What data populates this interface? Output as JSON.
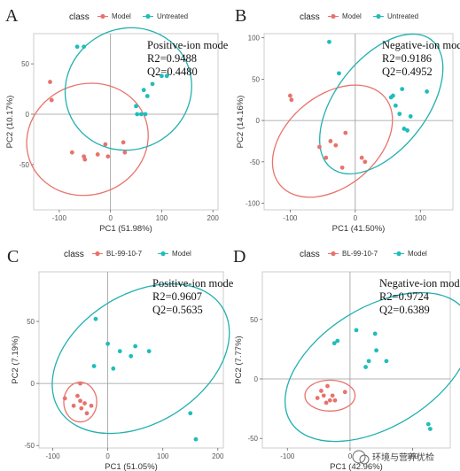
{
  "colors": {
    "red": "#E8736C",
    "teal": "#1FBDBC",
    "ellipse_red": "#E8736C",
    "ellipse_teal": "#22AFAF"
  },
  "watermark": "环境与营养优检",
  "chart_data": [
    {
      "type": "scatter",
      "panel_letter": "A",
      "legend_title": "class",
      "legend": [
        "Model",
        "Untreated"
      ],
      "annotation": [
        "Positive-ion mode",
        "R2=0.9488",
        "Q2=0.4480"
      ],
      "xlabel": "PC1 (51.98%)",
      "ylabel": "PC2 (10.17%)",
      "xlim": [
        -150,
        210
      ],
      "ylim": [
        -95,
        80
      ],
      "xticks": [
        -100,
        0,
        100,
        200
      ],
      "yticks": [
        -50,
        0,
        50
      ],
      "series": [
        {
          "name": "Model",
          "color": "red",
          "points": [
            [
              -118,
              32
            ],
            [
              -115,
              14
            ],
            [
              -75,
              -38
            ],
            [
              -52,
              -42
            ],
            [
              -50,
              -45
            ],
            [
              -25,
              -40
            ],
            [
              -10,
              -30
            ],
            [
              -5,
              -42
            ],
            [
              25,
              -28
            ],
            [
              28,
              -38
            ]
          ]
        },
        {
          "name": "Untreated",
          "color": "teal",
          "points": [
            [
              -65,
              67
            ],
            [
              -52,
              67
            ],
            [
              50,
              8
            ],
            [
              52,
              0
            ],
            [
              60,
              0
            ],
            [
              65,
              24
            ],
            [
              68,
              0
            ],
            [
              72,
              18
            ],
            [
              82,
              30
            ],
            [
              100,
              38
            ],
            [
              110,
              38
            ]
          ]
        }
      ],
      "ellipses": [
        {
          "series": "Model",
          "cx": -45,
          "cy": -25,
          "rx": 120,
          "ry": 55,
          "angle": -20
        },
        {
          "series": "Untreated",
          "cx": 35,
          "cy": 25,
          "rx": 125,
          "ry": 60,
          "angle": -28
        }
      ]
    },
    {
      "type": "scatter",
      "panel_letter": "B",
      "legend_title": "class",
      "legend": [
        "Model",
        "Untreated"
      ],
      "annotation": [
        "Negative-ion mode",
        "R2=0.9186",
        "Q2=0.4952"
      ],
      "xlabel": "PC1 (41.50%)",
      "ylabel": "PC2 (14.16%)",
      "xlim": [
        -140,
        150
      ],
      "ylim": [
        -108,
        105
      ],
      "xticks": [
        -100,
        0,
        100
      ],
      "yticks": [
        -100,
        -50,
        0,
        50,
        100
      ],
      "series": [
        {
          "name": "Model",
          "color": "red",
          "points": [
            [
              -100,
              30
            ],
            [
              -98,
              25
            ],
            [
              -55,
              -32
            ],
            [
              -45,
              -45
            ],
            [
              -38,
              -25
            ],
            [
              -30,
              -30
            ],
            [
              -20,
              -57
            ],
            [
              -15,
              -15
            ],
            [
              10,
              -45
            ],
            [
              15,
              -50
            ]
          ]
        },
        {
          "name": "Untreated",
          "color": "teal",
          "points": [
            [
              -40,
              95
            ],
            [
              -25,
              57
            ],
            [
              55,
              28
            ],
            [
              58,
              30
            ],
            [
              62,
              18
            ],
            [
              68,
              8
            ],
            [
              72,
              38
            ],
            [
              75,
              -10
            ],
            [
              80,
              -12
            ],
            [
              85,
              5
            ],
            [
              110,
              35
            ]
          ]
        }
      ],
      "ellipses": [
        {
          "series": "Model",
          "cx": -35,
          "cy": -25,
          "rx": 105,
          "ry": 55,
          "angle": -40
        },
        {
          "series": "Untreated",
          "cx": 40,
          "cy": 20,
          "rx": 125,
          "ry": 55,
          "angle": -52
        }
      ]
    },
    {
      "type": "scatter",
      "panel_letter": "C",
      "legend_title": "class",
      "legend": [
        "BL-99-10-7",
        "Model"
      ],
      "annotation": [
        "Positive-ion mode",
        "R2=0.9607",
        "Q2=0.5635"
      ],
      "xlabel": "PC1 (51.05%)",
      "ylabel": "PC2 (7.19%)",
      "xlim": [
        -125,
        210
      ],
      "ylim": [
        -52,
        90
      ],
      "xticks": [
        -100,
        0,
        100,
        200
      ],
      "yticks": [
        -50,
        0,
        50
      ],
      "series": [
        {
          "name": "BL-99-10-7",
          "color": "red",
          "points": [
            [
              -78,
              -12
            ],
            [
              -62,
              -18
            ],
            [
              -55,
              -10
            ],
            [
              -50,
              -14
            ],
            [
              -48,
              -20
            ],
            [
              -42,
              -16
            ],
            [
              -38,
              -24
            ],
            [
              -50,
              0
            ],
            [
              -30,
              -18
            ]
          ]
        },
        {
          "name": "Model",
          "color": "teal",
          "points": [
            [
              -22,
              52
            ],
            [
              -25,
              14
            ],
            [
              0,
              32
            ],
            [
              10,
              12
            ],
            [
              22,
              26
            ],
            [
              42,
              22
            ],
            [
              50,
              30
            ],
            [
              75,
              26
            ],
            [
              150,
              -24
            ],
            [
              160,
              -45
            ]
          ]
        }
      ],
      "ellipses": [
        {
          "series": "BL-99-10-7",
          "cx": -50,
          "cy": -15,
          "rx": 30,
          "ry": 16,
          "angle": 0
        },
        {
          "series": "Model",
          "cx": 60,
          "cy": 20,
          "rx": 175,
          "ry": 52,
          "angle": -32
        }
      ]
    },
    {
      "type": "scatter",
      "panel_letter": "D",
      "legend_title": "class",
      "legend": [
        "BL-99-10-7",
        "Model"
      ],
      "annotation": [
        "Negative-ion mode",
        "R2=0.9724",
        "Q2=0.6389"
      ],
      "xlabel": "PC1 (42.96%)",
      "ylabel": "PC2 (7.77%)",
      "xlim": [
        -140,
        160
      ],
      "ylim": [
        -58,
        90
      ],
      "xticks": [
        -100,
        0,
        100
      ],
      "yticks": [
        -50,
        0,
        50
      ],
      "series": [
        {
          "name": "BL-99-10-7",
          "color": "red",
          "points": [
            [
              -52,
              -16
            ],
            [
              -46,
              -10
            ],
            [
              -42,
              -14
            ],
            [
              -38,
              -20
            ],
            [
              -36,
              -6
            ],
            [
              -32,
              -18
            ],
            [
              -28,
              -14
            ],
            [
              -24,
              -18
            ],
            [
              -8,
              -11
            ]
          ]
        },
        {
          "name": "Model",
          "color": "teal",
          "points": [
            [
              -25,
              30
            ],
            [
              -20,
              32
            ],
            [
              10,
              41
            ],
            [
              25,
              10
            ],
            [
              30,
              15
            ],
            [
              40,
              38
            ],
            [
              42,
              24
            ],
            [
              58,
              15
            ],
            [
              125,
              -38
            ],
            [
              128,
              -42
            ]
          ]
        }
      ],
      "ellipses": [
        {
          "series": "BL-99-10-7",
          "cx": -32,
          "cy": -14,
          "rx": 40,
          "ry": 13,
          "angle": 0
        },
        {
          "series": "Model",
          "cx": 45,
          "cy": 10,
          "rx": 165,
          "ry": 50,
          "angle": -32
        }
      ]
    }
  ]
}
